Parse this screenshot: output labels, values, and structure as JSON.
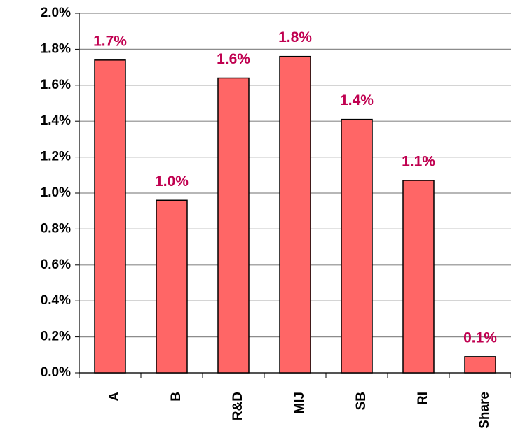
{
  "chart_data": {
    "type": "bar",
    "categories": [
      "A",
      "B",
      "R&D",
      "MIJ",
      "SB",
      "RI",
      "Share"
    ],
    "values": [
      1.74,
      0.96,
      1.64,
      1.76,
      1.41,
      1.07,
      0.09
    ],
    "value_labels": [
      "1.7%",
      "1.0%",
      "1.6%",
      "1.8%",
      "1.4%",
      "1.1%",
      "0.1%"
    ],
    "color": "#ff6666",
    "ylim": [
      0,
      2.0
    ],
    "yticks": [
      {
        "value": 0,
        "label": "0.0%"
      },
      {
        "value": 0.2,
        "label": "0.2%"
      },
      {
        "value": 0.4,
        "label": "0.4%"
      },
      {
        "value": 0.6,
        "label": "0.6%"
      },
      {
        "value": 0.8,
        "label": "0.8%"
      },
      {
        "value": 1.0,
        "label": "1.0%"
      },
      {
        "value": 1.2,
        "label": "1.2%"
      },
      {
        "value": 1.4,
        "label": "1.4%"
      },
      {
        "value": 1.6,
        "label": "1.6%"
      },
      {
        "value": 1.8,
        "label": "1.8%"
      },
      {
        "value": 2.0,
        "label": "2.0%"
      }
    ],
    "grid": true
  }
}
